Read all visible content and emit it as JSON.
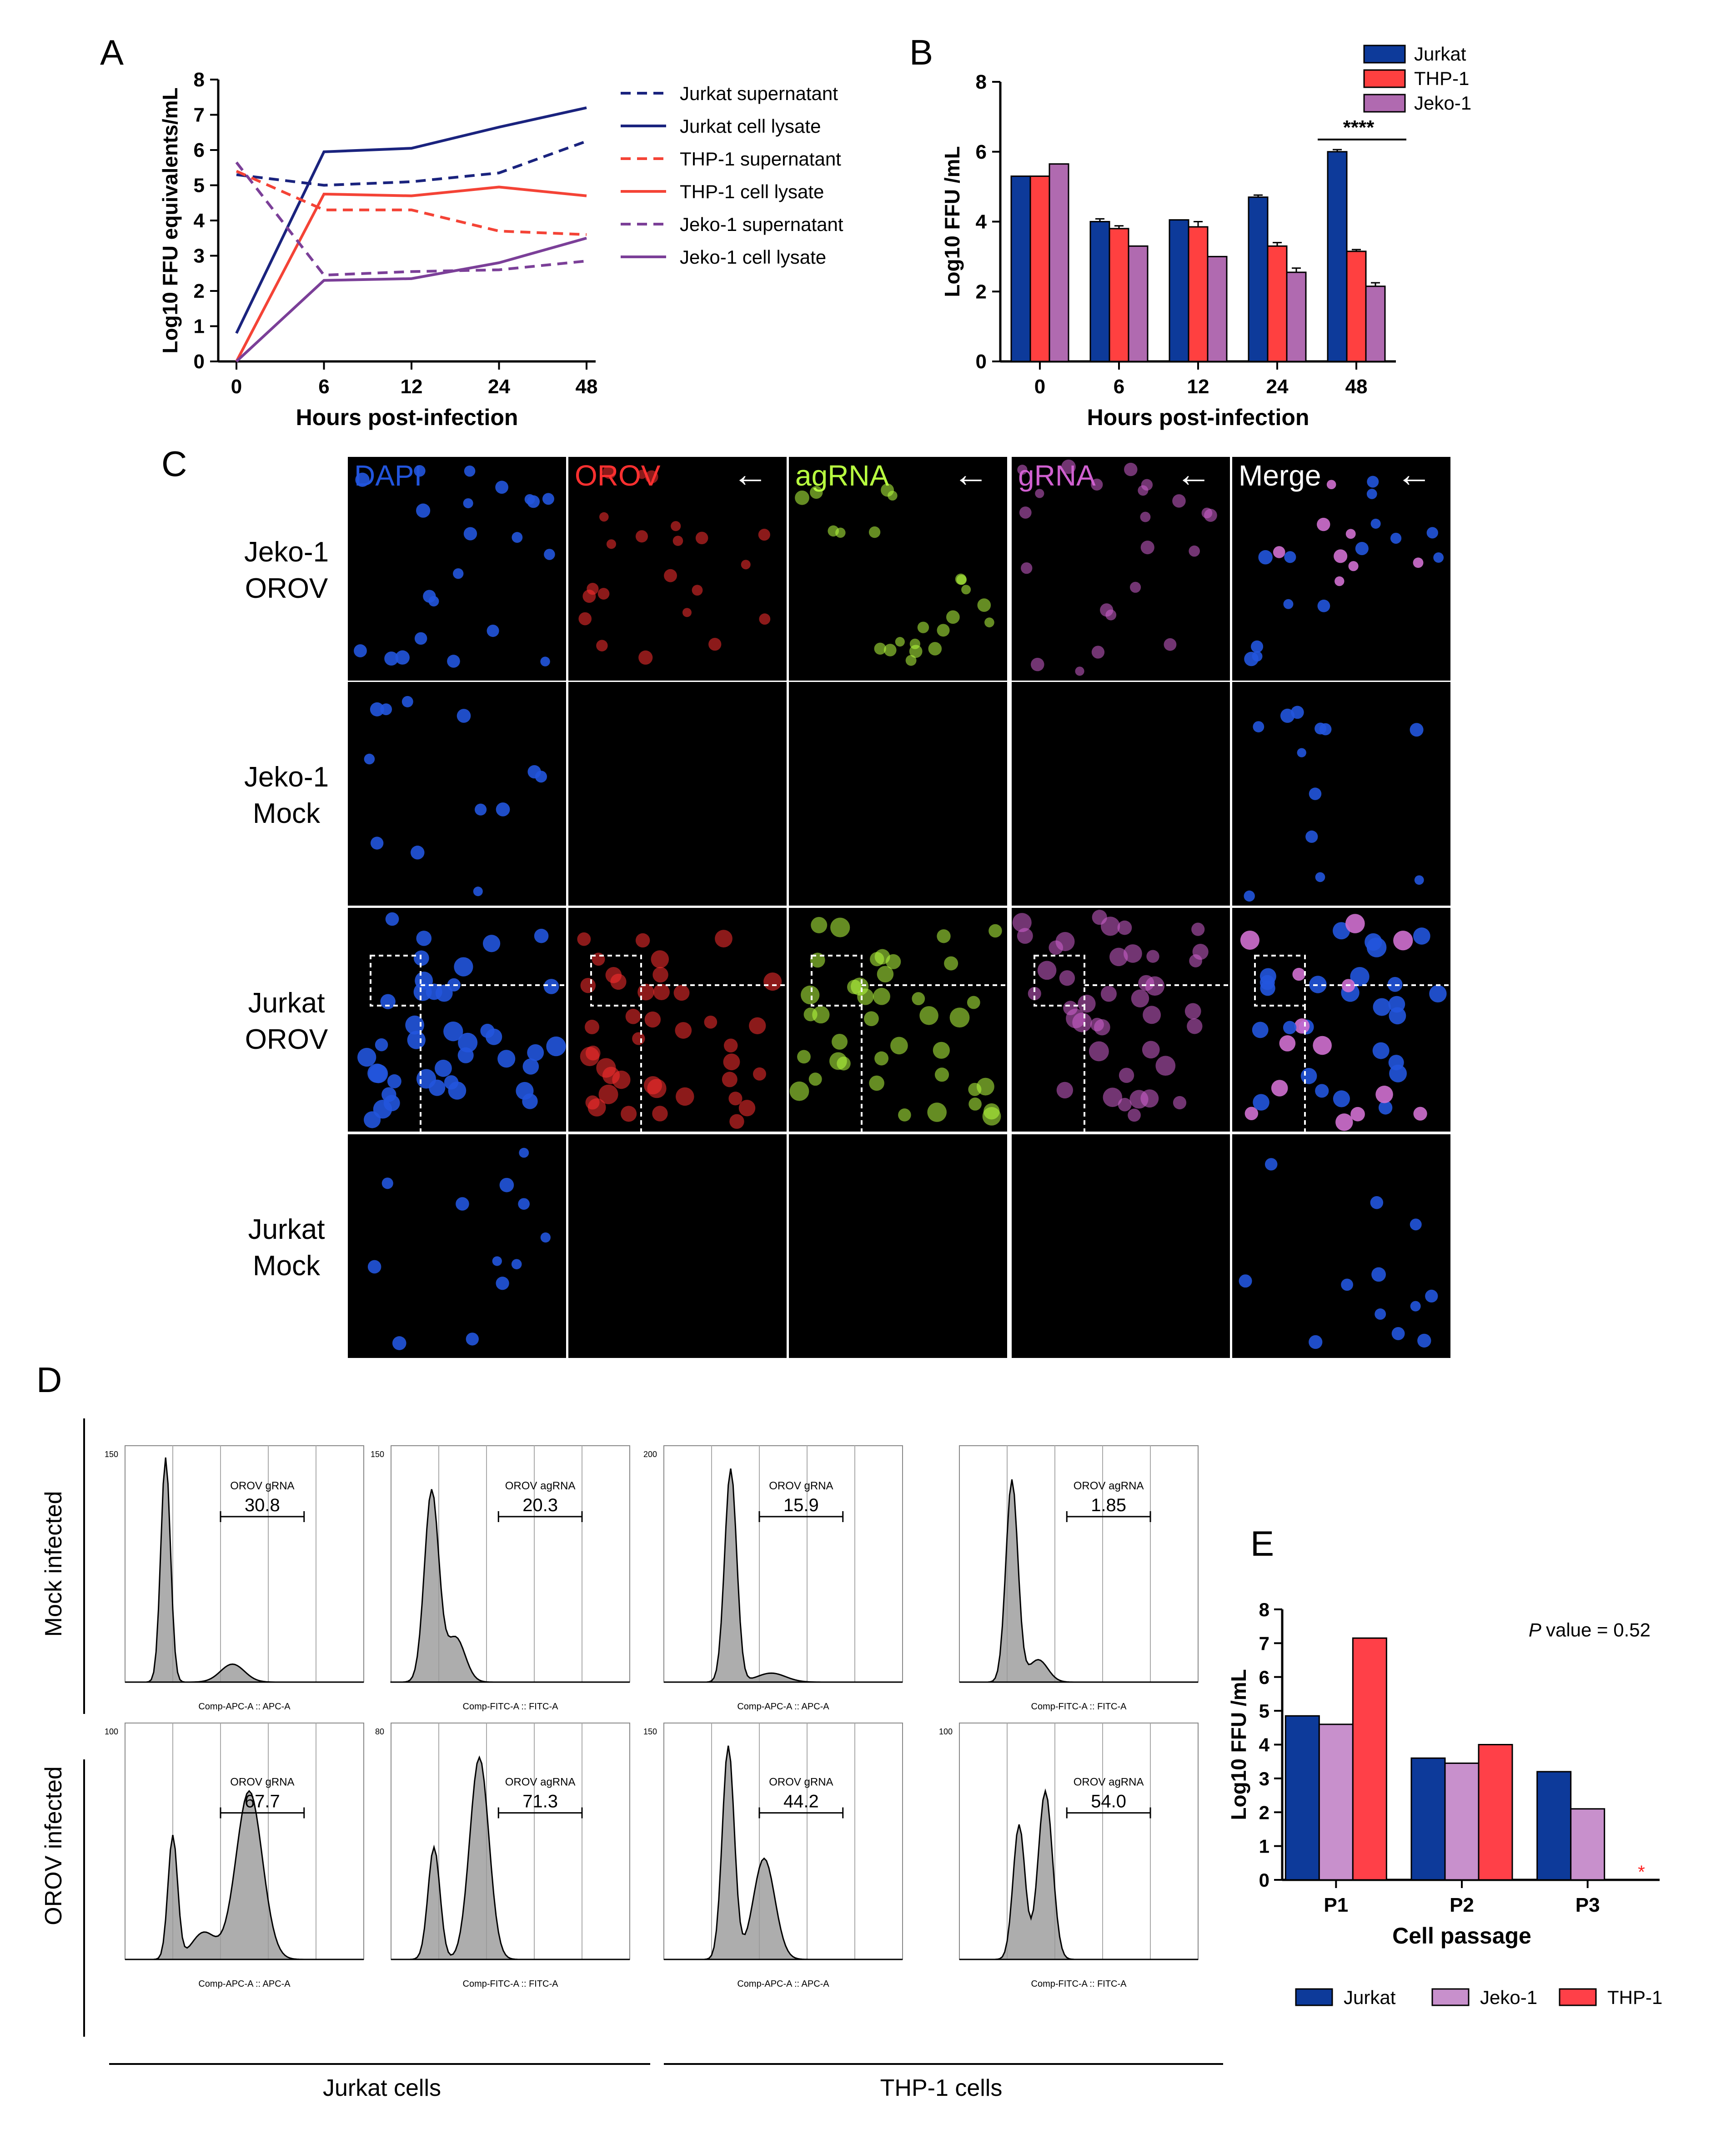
{
  "panels": {
    "A": "A",
    "B": "B",
    "C": "C",
    "D": "D",
    "E": "E"
  },
  "chart_data": [
    {
      "id": "A",
      "type": "line",
      "x": [
        "0",
        "6",
        "12",
        "24",
        "48"
      ],
      "xlabel": "Hours post-infection",
      "ylabel": "Log10 FFU equivalents/mL",
      "ylim": [
        0,
        8
      ],
      "yticks": [
        "0",
        "1",
        "2",
        "3",
        "4",
        "5",
        "6",
        "7",
        "8"
      ],
      "legend_position": "right",
      "series": [
        {
          "name": "Jurkat supernatant",
          "color": "#1a237e",
          "dash": true,
          "values": [
            5.3,
            5.0,
            5.1,
            5.35,
            6.25
          ]
        },
        {
          "name": "Jurkat cell lysate",
          "color": "#1a237e",
          "dash": false,
          "values": [
            0.8,
            5.95,
            6.05,
            6.65,
            7.2
          ]
        },
        {
          "name": "THP-1 supernatant",
          "color": "#f44336",
          "dash": true,
          "values": [
            5.4,
            4.3,
            4.3,
            3.7,
            3.6
          ]
        },
        {
          "name": "THP-1 cell lysate",
          "color": "#f44336",
          "dash": false,
          "values": [
            0.0,
            4.75,
            4.7,
            4.95,
            4.7
          ]
        },
        {
          "name": "Jeko-1 supernatant",
          "color": "#7b3f98",
          "dash": true,
          "values": [
            5.65,
            2.45,
            2.55,
            2.6,
            2.85
          ]
        },
        {
          "name": "Jeko-1 cell lysate",
          "color": "#7b3f98",
          "dash": false,
          "values": [
            0.0,
            2.3,
            2.35,
            2.8,
            3.5
          ]
        }
      ]
    },
    {
      "id": "B",
      "type": "bar",
      "categories": [
        "0",
        "6",
        "12",
        "24",
        "48"
      ],
      "xlabel": "Hours post-infection",
      "ylabel": "Log10 FFU /mL",
      "ylim": [
        0,
        8
      ],
      "yticks": [
        "0",
        "2",
        "4",
        "6",
        "8"
      ],
      "legend_position": "top-right",
      "annotation": "****",
      "series": [
        {
          "name": "Jurkat",
          "color": "#0d3a9a",
          "values": [
            5.3,
            4.0,
            4.05,
            4.7,
            6.0
          ],
          "err": [
            0,
            0.08,
            0,
            0.06,
            0.06
          ]
        },
        {
          "name": "THP-1",
          "color": "#ff4040",
          "values": [
            5.3,
            3.8,
            3.85,
            3.3,
            3.15
          ],
          "err": [
            0,
            0.08,
            0.15,
            0.1,
            0.05
          ]
        },
        {
          "name": "Jeko-1",
          "color": "#b06ab0",
          "values": [
            5.65,
            3.3,
            3.0,
            2.55,
            2.15
          ],
          "err": [
            0,
            0,
            0,
            0.12,
            0.1
          ]
        }
      ]
    },
    {
      "id": "E",
      "type": "bar",
      "categories": [
        "P1",
        "P2",
        "P3"
      ],
      "xlabel": "Cell passage",
      "ylabel": "Log10 FFU /mL",
      "ylim": [
        0,
        8
      ],
      "yticks": [
        "0",
        "1",
        "2",
        "3",
        "4",
        "5",
        "6",
        "7",
        "8"
      ],
      "legend_position": "bottom",
      "annotation": "value = 0.52",
      "annotation_italic": "P",
      "marker": "*",
      "series": [
        {
          "name": "Jurkat",
          "color": "#0d3a9a",
          "values": [
            4.85,
            3.6,
            3.2
          ]
        },
        {
          "name": "Jeko-1",
          "color": "#c890cc",
          "values": [
            4.6,
            3.45,
            2.1
          ]
        },
        {
          "name": "THP-1",
          "color": "#ff4048",
          "values": [
            7.15,
            4.0,
            0
          ]
        }
      ]
    }
  ],
  "panelC": {
    "channels": [
      "DAPI",
      "OROV",
      "agRNA",
      "gRNA",
      "Merge"
    ],
    "channel_colors": [
      "#2255dd",
      "#ff3030",
      "#b8ff40",
      "#d060d0",
      "#ffffff"
    ],
    "arrow": "←",
    "rows": [
      {
        "line1": "Jeko-1",
        "line2": "OROV"
      },
      {
        "line1": "Jeko-1",
        "line2": "Mock"
      },
      {
        "line1": "Jurkat",
        "line2": "OROV"
      },
      {
        "line1": "Jurkat",
        "line2": "Mock"
      }
    ]
  },
  "panelD": {
    "row_labels": [
      "Mock infected",
      "OROV infected"
    ],
    "group_labels": [
      "Jurkat cells",
      "THP-1 cells"
    ],
    "histograms": [
      {
        "gate": "OROV gRNA",
        "value": "30.8",
        "xaxis": "Comp-APC-A :: APC-A",
        "ymax": "150",
        "peaks": [
          [
            0.17,
            1.0,
            0.02
          ],
          [
            0.45,
            0.08,
            0.05
          ]
        ]
      },
      {
        "gate": "OROV agRNA",
        "value": "20.3",
        "xaxis": "Comp-FITC-A :: FITC-A",
        "ymax": "150",
        "peaks": [
          [
            0.17,
            0.85,
            0.03
          ],
          [
            0.27,
            0.2,
            0.04
          ]
        ]
      },
      {
        "gate": "OROV gRNA",
        "value": "15.9",
        "xaxis": "Comp-APC-A :: APC-A",
        "ymax": "200",
        "peaks": [
          [
            0.28,
            0.95,
            0.025
          ],
          [
            0.45,
            0.04,
            0.06
          ]
        ]
      },
      {
        "gate": "OROV agRNA",
        "value": "1.85",
        "xaxis": "Comp-FITC-A :: FITC-A",
        "ymax": "",
        "peaks": [
          [
            0.22,
            0.9,
            0.025
          ],
          [
            0.33,
            0.1,
            0.04
          ]
        ]
      },
      {
        "gate": "OROV gRNA",
        "value": "67.7",
        "xaxis": "Comp-APC-A :: APC-A",
        "ymax": "100",
        "peaks": [
          [
            0.2,
            0.55,
            0.02
          ],
          [
            0.33,
            0.12,
            0.05
          ],
          [
            0.52,
            0.75,
            0.055
          ]
        ]
      },
      {
        "gate": "OROV agRNA",
        "value": "71.3",
        "xaxis": "Comp-FITC-A :: FITC-A",
        "ymax": "80",
        "peaks": [
          [
            0.18,
            0.5,
            0.025
          ],
          [
            0.37,
            0.9,
            0.04
          ]
        ]
      },
      {
        "gate": "OROV gRNA",
        "value": "44.2",
        "xaxis": "Comp-APC-A :: APC-A",
        "ymax": "150",
        "peaks": [
          [
            0.27,
            0.95,
            0.025
          ],
          [
            0.42,
            0.45,
            0.045
          ]
        ]
      },
      {
        "gate": "OROV agRNA",
        "value": "54.0",
        "xaxis": "Comp-FITC-A :: FITC-A",
        "ymax": "100",
        "peaks": [
          [
            0.25,
            0.6,
            0.025
          ],
          [
            0.36,
            0.75,
            0.03
          ]
        ]
      }
    ]
  }
}
